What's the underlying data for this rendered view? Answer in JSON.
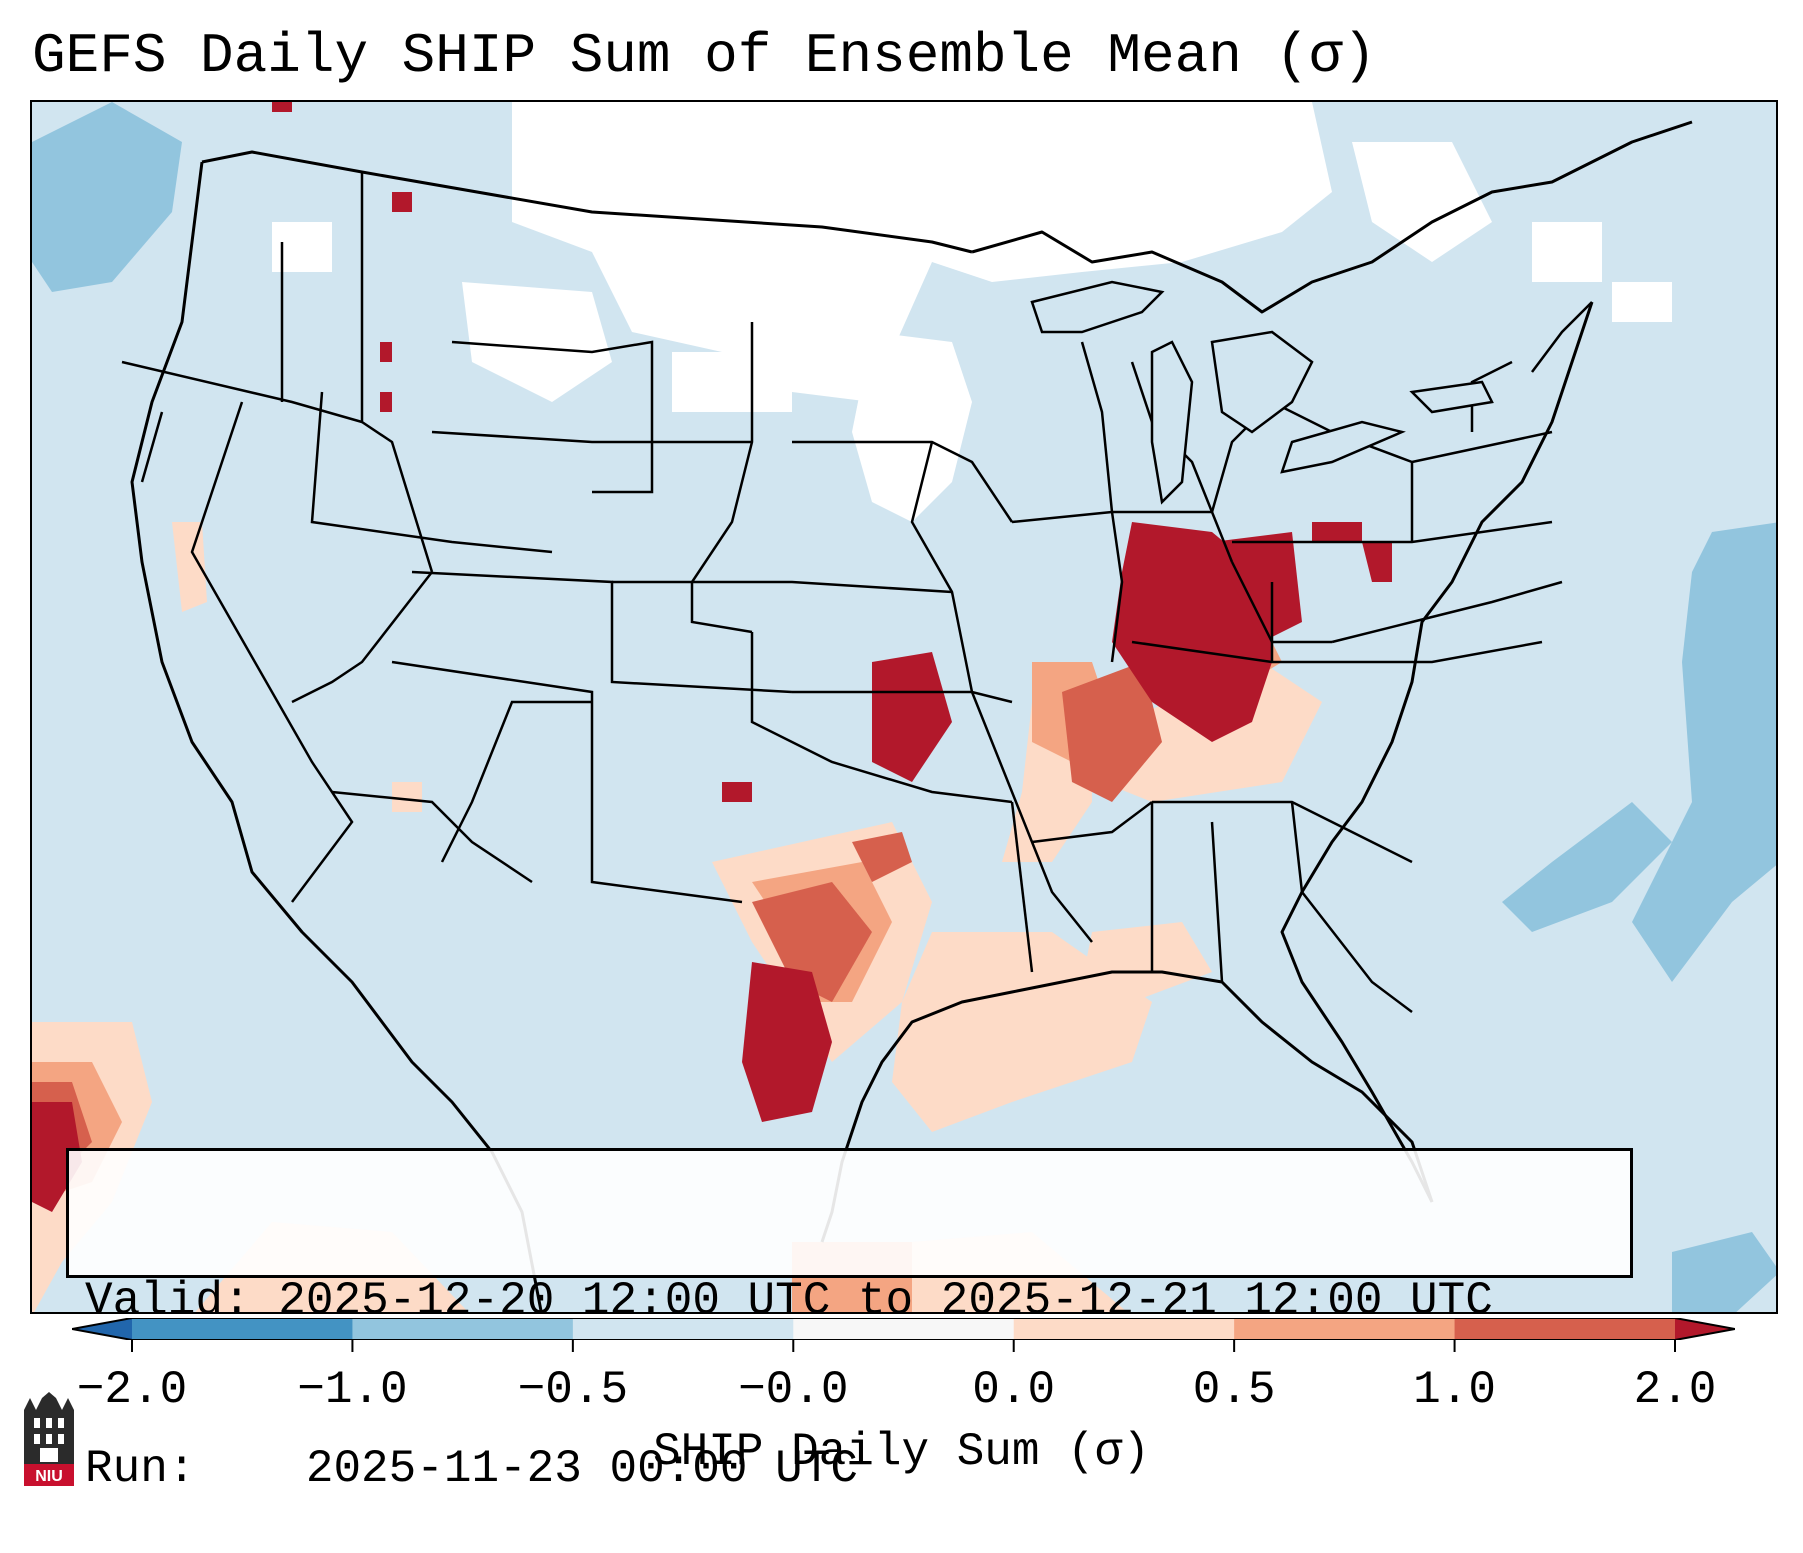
{
  "title": "GEFS Daily SHIP Sum of Ensemble Mean (σ)",
  "info": {
    "valid_label": "Valid:",
    "valid_value": "2025-12-20 12:00 UTC to 2025-12-21 12:00 UTC",
    "run_label": "Run:",
    "run_value": "2025-11-23 00:00 UTC"
  },
  "colorbar": {
    "title": "SHIP Daily Sum (σ)",
    "tick_labels": [
      "−2.0",
      "−1.0",
      "−0.5",
      "−0.0",
      "0.0",
      "0.5",
      "1.0",
      "2.0"
    ],
    "colors": [
      "#2166ac",
      "#4393c3",
      "#92c5de",
      "#d1e5f0",
      "#f7f7f7",
      "#fddbc7",
      "#f4a582",
      "#d6604d",
      "#b2182b"
    ]
  },
  "logo": {
    "text": "NIU",
    "icon": "niu-castle-icon"
  },
  "map": {
    "background_color": "#d1e5f0",
    "no_data_color": "#ffffff",
    "regions": [
      {
        "name": "Kansas",
        "category": "> 2.0"
      },
      {
        "name": "Illinois / Indiana",
        "category": "> 2.0"
      },
      {
        "name": "Missouri / Arkansas",
        "category": "1.0 to 2.0"
      },
      {
        "name": "South Texas",
        "category": "> 2.0"
      },
      {
        "name": "Gulf Coast",
        "category": "0.0 to 0.5"
      },
      {
        "name": "Atlantic offshore",
        "category": "-1.0 to -0.5"
      }
    ]
  }
}
